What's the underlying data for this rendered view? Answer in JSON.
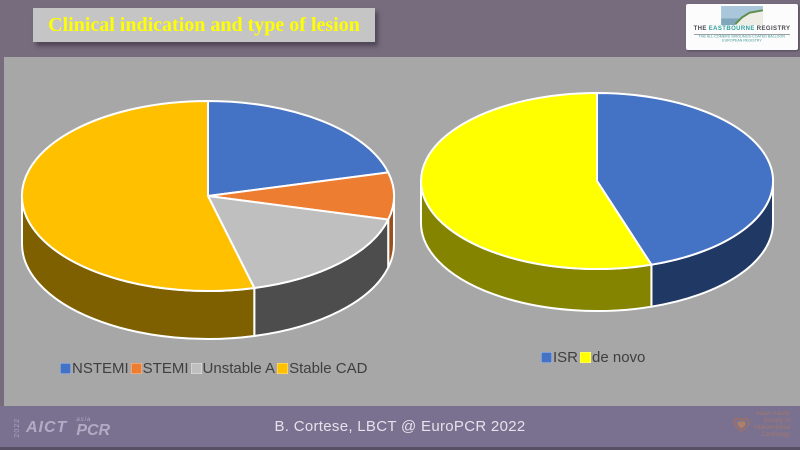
{
  "slide": {
    "title": "Clinical indication and type of lesion",
    "footer_credit": "B. Cortese, LBCT @ EuroPCR 2022"
  },
  "theme": {
    "top_strip_color": "#776C7E",
    "footer_color": "#7A7090",
    "main_background": "#A7A7A7",
    "title_bar_background": "#C6C5C5",
    "title_text_color": "#FFFF00",
    "legend_text_color": "#3F3F3F"
  },
  "logos": {
    "eastbourne": {
      "name_prefix": "THE",
      "name_highlight": "EASTBOURNE",
      "name_suffix": "REGISTRY",
      "subtitle_line1": "THE ALL-COMERS SIROLIMUS-COATED BALLOON",
      "subtitle_line2": "EUROPEAN REGISTRY"
    },
    "aict_pcr": {
      "year": "2022",
      "aict": "AICT",
      "asia": "asia",
      "pcr": "PCR"
    },
    "apsic": {
      "lines": [
        "Asian Pacific",
        "Society of",
        "Interventional",
        "Cardiology"
      ]
    }
  },
  "chart_data": [
    {
      "type": "pie",
      "projection": "3d",
      "title": "Clinical indication",
      "labels": [
        "NSTEMI",
        "STEMI",
        "Unstable A",
        "Stable CAD"
      ],
      "values": [
        21,
        8,
        17,
        54
      ],
      "values_note": "percent share estimated from slice angles; no data labels are printed on the slide",
      "colors": [
        "#4472C4",
        "#ED7D31",
        "#BFBFBF",
        "#FFC000"
      ],
      "side_colors": [
        "#27497E",
        "#99501D",
        "#4D4D4D",
        "#7F6000"
      ],
      "start_angle": "12 o'clock, clockwise",
      "legend_position": "bottom"
    },
    {
      "type": "pie",
      "projection": "3d",
      "title": "Type of lesion",
      "labels": [
        "ISR",
        "de novo"
      ],
      "values": [
        45,
        55
      ],
      "values_note": "percent share estimated from slice angles; no data labels are printed on the slide",
      "colors": [
        "#4472C4",
        "#FFFF00"
      ],
      "side_colors": [
        "#1F3864",
        "#848400"
      ],
      "start_angle": "12 o'clock, clockwise",
      "legend_position": "bottom"
    }
  ]
}
